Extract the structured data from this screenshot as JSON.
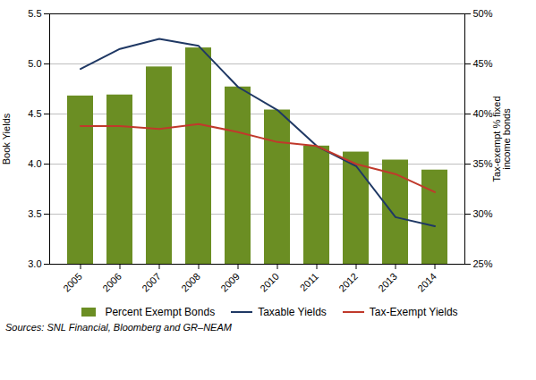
{
  "chart_data": {
    "type": "bar",
    "categories": [
      "2005",
      "2006",
      "2007",
      "2008",
      "2009",
      "2010",
      "2011",
      "2012",
      "2013",
      "2014"
    ],
    "series": [
      {
        "name": "Percent Exempt Bonds",
        "type": "bar",
        "color": "#6b8e23",
        "values": [
          4.68,
          4.69,
          4.97,
          5.16,
          4.77,
          4.54,
          4.18,
          4.12,
          4.04,
          3.94
        ]
      },
      {
        "name": "Taxable Yields",
        "type": "line",
        "color": "#1f3864",
        "values": [
          4.95,
          5.15,
          5.25,
          5.18,
          4.77,
          4.54,
          4.18,
          3.98,
          3.47,
          3.38
        ]
      },
      {
        "name": "Tax-Exempt Yields",
        "type": "line",
        "color": "#c0392b",
        "values": [
          4.38,
          4.38,
          4.35,
          4.4,
          4.32,
          4.22,
          4.18,
          4.0,
          3.9,
          3.72
        ]
      }
    ],
    "ylabel": "Book Yields",
    "y2label": "Tax-exempt % fixed\nincome bonds",
    "ylim": [
      3.0,
      5.5
    ],
    "yticks": [
      {
        "value": 3.0,
        "label": "3.0"
      },
      3.5,
      {
        "value": 4.0,
        "label": "4.0"
      },
      4.5,
      {
        "value": 5.0,
        "label": "5.0"
      },
      5.5
    ],
    "y2lim": [
      0.25,
      0.5
    ],
    "y2ticks": [
      {
        "value": 0.25,
        "label": "25%"
      },
      {
        "value": 0.3,
        "label": "30%"
      },
      {
        "value": 0.35,
        "label": "35%"
      },
      {
        "value": 0.4,
        "label": "40%"
      },
      {
        "value": 0.45,
        "label": "45%"
      },
      {
        "value": 0.5,
        "label": "50%"
      }
    ],
    "grid": true,
    "legend": "bottom",
    "caption": "Sources: SNL Financial, Bloomberg and GR–NEAM"
  }
}
